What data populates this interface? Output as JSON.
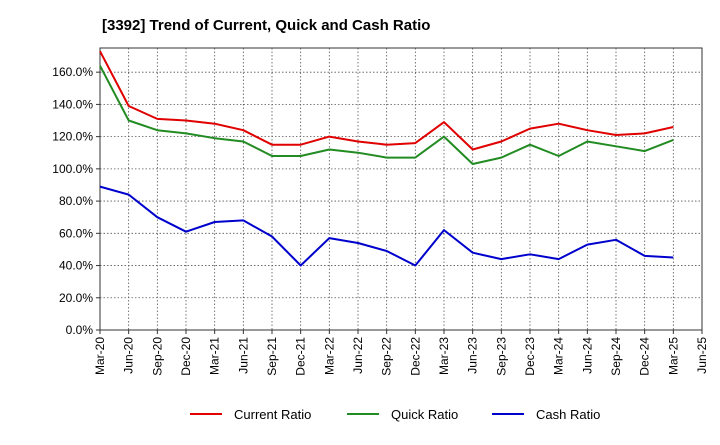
{
  "chart_data": {
    "type": "line",
    "title": "[3392]  Trend of Current, Quick and Cash Ratio",
    "xlabel": "",
    "ylabel": "",
    "ylim": [
      0,
      175
    ],
    "yticks": [
      0,
      20,
      40,
      60,
      80,
      100,
      120,
      140,
      160
    ],
    "ytick_labels": [
      "0.0%",
      "20.0%",
      "40.0%",
      "60.0%",
      "80.0%",
      "100.0%",
      "120.0%",
      "140.0%",
      "160.0%"
    ],
    "grid": true,
    "legend_position": "bottom",
    "x_tick_labels": [
      "Mar-20",
      "Jun-20",
      "Sep-20",
      "Dec-20",
      "Mar-21",
      "Jun-21",
      "Sep-21",
      "Dec-21",
      "Mar-22",
      "Jun-22",
      "Sep-22",
      "Dec-22",
      "Mar-23",
      "Jun-23",
      "Sep-23",
      "Dec-23",
      "Mar-24",
      "Jun-24",
      "Sep-24",
      "Dec-24",
      "Mar-25",
      "Jun-25"
    ],
    "categories": [
      "Mar-20",
      "Jun-20",
      "Sep-20",
      "Dec-20",
      "Mar-21",
      "Jun-21",
      "Sep-21",
      "Dec-21",
      "Mar-22",
      "Jun-22",
      "Sep-22",
      "Dec-22",
      "Mar-23",
      "Jun-23",
      "Sep-23",
      "Dec-23",
      "Mar-24",
      "Jun-24",
      "Sep-24",
      "Dec-24",
      "Mar-25"
    ],
    "series": [
      {
        "name": "Current Ratio",
        "color": "#e00000",
        "values": [
          173,
          139,
          131,
          130,
          128,
          124,
          115,
          115,
          120,
          117,
          115,
          116,
          129,
          112,
          117,
          125,
          128,
          124,
          121,
          122,
          126
        ]
      },
      {
        "name": "Quick Ratio",
        "color": "#228b22",
        "values": [
          164,
          130,
          124,
          122,
          119,
          117,
          108,
          108,
          112,
          110,
          107,
          107,
          120,
          103,
          107,
          115,
          108,
          117,
          114,
          111,
          118
        ]
      },
      {
        "name": "Cash Ratio",
        "color": "#0000cd",
        "values": [
          89,
          84,
          70,
          61,
          67,
          68,
          58,
          40,
          57,
          54,
          49,
          40,
          62,
          48,
          44,
          47,
          44,
          53,
          56,
          46,
          45
        ]
      }
    ]
  }
}
